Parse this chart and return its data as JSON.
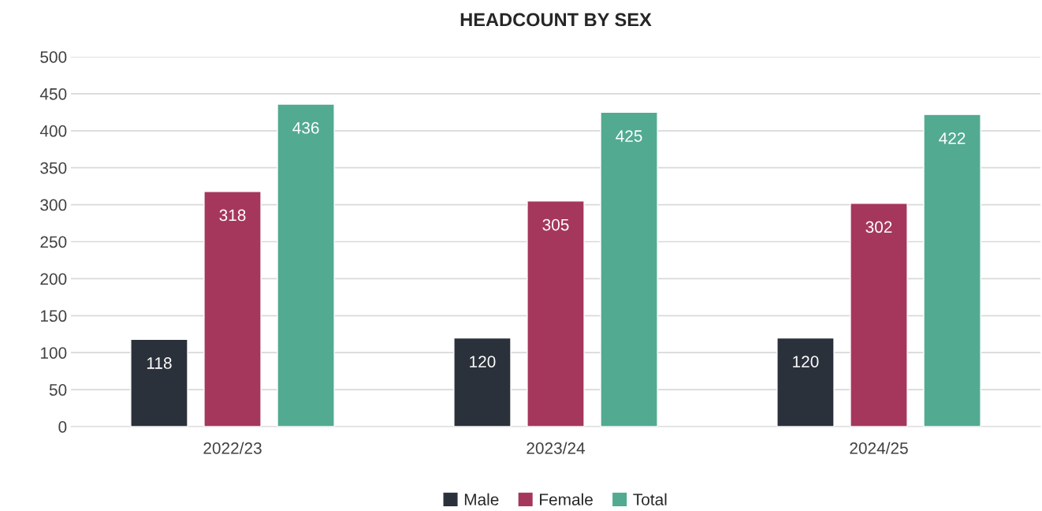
{
  "chart_data": {
    "type": "bar",
    "title": "HEADCOUNT BY SEX",
    "categories": [
      "2022/23",
      "2023/24",
      "2024/25"
    ],
    "series": [
      {
        "name": "Male",
        "color": "#2a313b",
        "values": [
          118,
          120,
          120
        ]
      },
      {
        "name": "Female",
        "color": "#a5375d",
        "values": [
          318,
          305,
          302
        ]
      },
      {
        "name": "Total",
        "color": "#52aa91",
        "values": [
          436,
          425,
          422
        ]
      }
    ],
    "ylim": [
      0,
      500
    ],
    "yticks": [
      0,
      50,
      100,
      150,
      200,
      250,
      300,
      350,
      400,
      450,
      500
    ],
    "grid": "y",
    "legend": "bottom",
    "data_labels": true
  }
}
